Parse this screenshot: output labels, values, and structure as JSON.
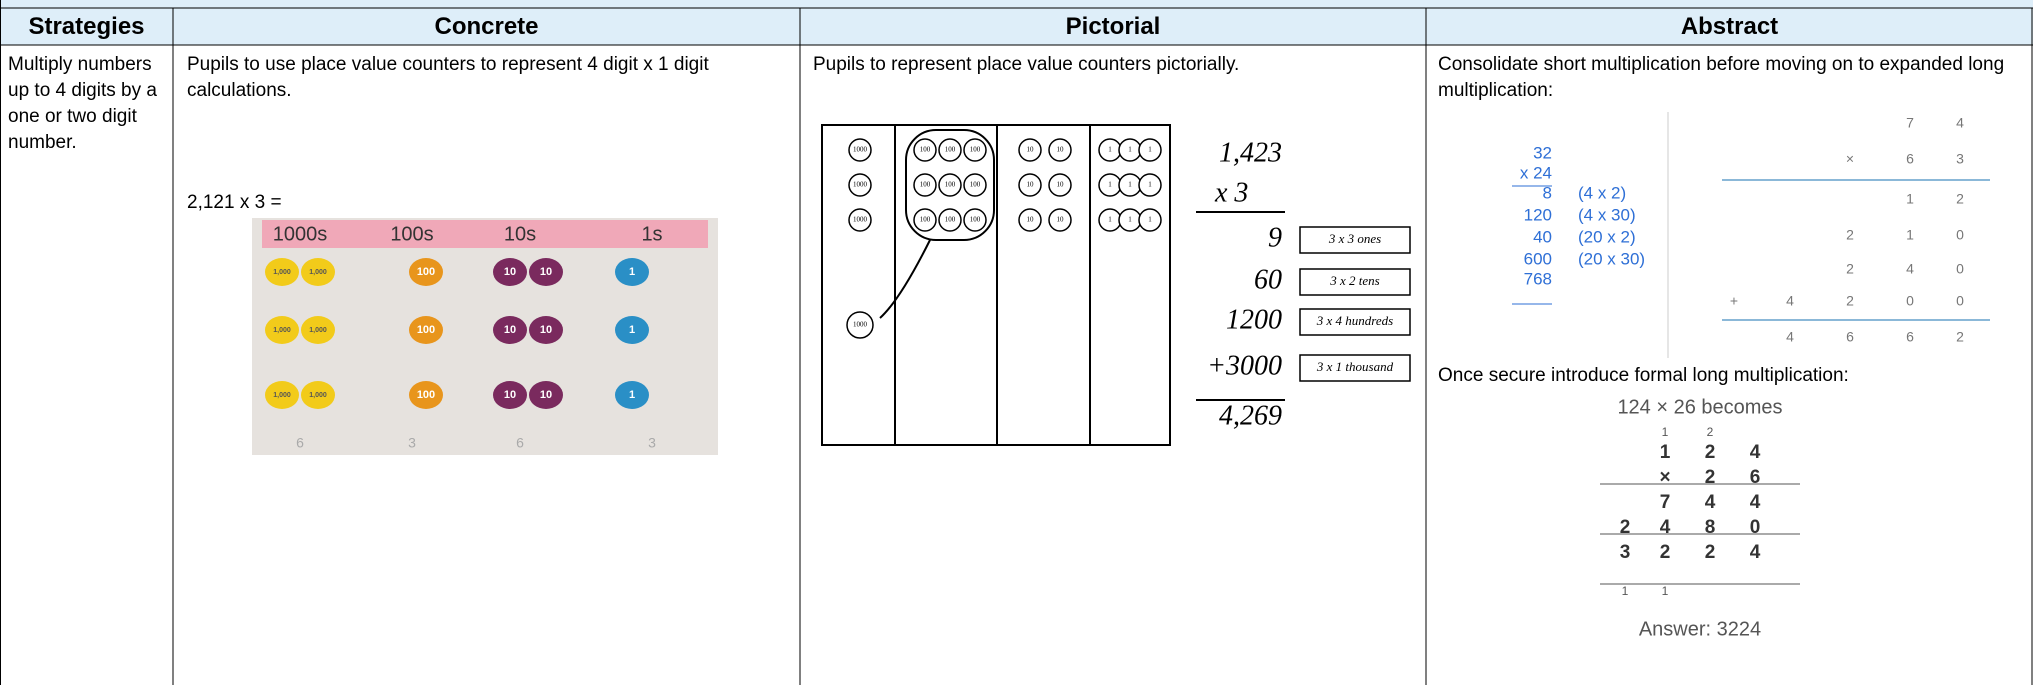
{
  "table": {
    "headers": [
      "Strategies",
      "Concrete",
      "Pictorial",
      "Abstract"
    ],
    "strategies": "Multiply numbers up to 4 digits by a one or two digit number.",
    "concrete": {
      "text": "Pupils to use place value counters to represent 4 digit x 1 digit calculations.",
      "example": "2,121 x 3 =",
      "photo": {
        "columns": [
          "1000s",
          "100s",
          "10s",
          "1s"
        ],
        "counters": [
          "1,000",
          "100",
          "10",
          "1"
        ],
        "footer": [
          "6",
          "3",
          "6",
          "3"
        ]
      }
    },
    "pictorial": {
      "text": "Pupils to represent place value counters pictorially.",
      "counters": [
        "1000",
        "100",
        "10",
        "1"
      ],
      "sum": [
        "1,423",
        "x 3",
        "9",
        "60",
        "1200",
        "+3000",
        "4,269"
      ],
      "notes": [
        "3 x 3 ones",
        "3 x 2 tens",
        "3 x 4 hundreds",
        "3 x 1 thousand"
      ]
    },
    "abstract": {
      "text1": "Consolidate short multiplication before moving on to expanded long multiplication:",
      "expanded_numbers": [
        "32",
        "x 24",
        "8",
        "120",
        "40",
        "600",
        "768"
      ],
      "expanded_notes": [
        "(4 x 2)",
        "(4 x 30)",
        "(20 x 2)",
        "(20 x 30)"
      ],
      "grid_rows": [
        [
          "7",
          "4"
        ],
        [
          "×",
          "6",
          "3"
        ],
        [
          "1",
          "2"
        ],
        [
          "2",
          "1",
          "0"
        ],
        [
          "2",
          "4",
          "0"
        ],
        [
          "+",
          "4",
          "2",
          "0",
          "0"
        ],
        [
          "4",
          "6",
          "6",
          "2"
        ]
      ],
      "text2": "Once secure introduce formal long multiplication:",
      "formal_title": "124 × 26 becomes",
      "formal_carries_top": [
        "1",
        "2"
      ],
      "formal_rows": [
        [
          "1",
          "2",
          "4"
        ],
        [
          "×",
          "2",
          "6"
        ],
        [
          "7",
          "4",
          "4"
        ],
        [
          "2",
          "4",
          "8",
          "0"
        ],
        [
          "3",
          "2",
          "2",
          "4"
        ]
      ],
      "formal_carries_bottom": [
        "1",
        "1"
      ],
      "answer": "Answer: 3224"
    }
  }
}
